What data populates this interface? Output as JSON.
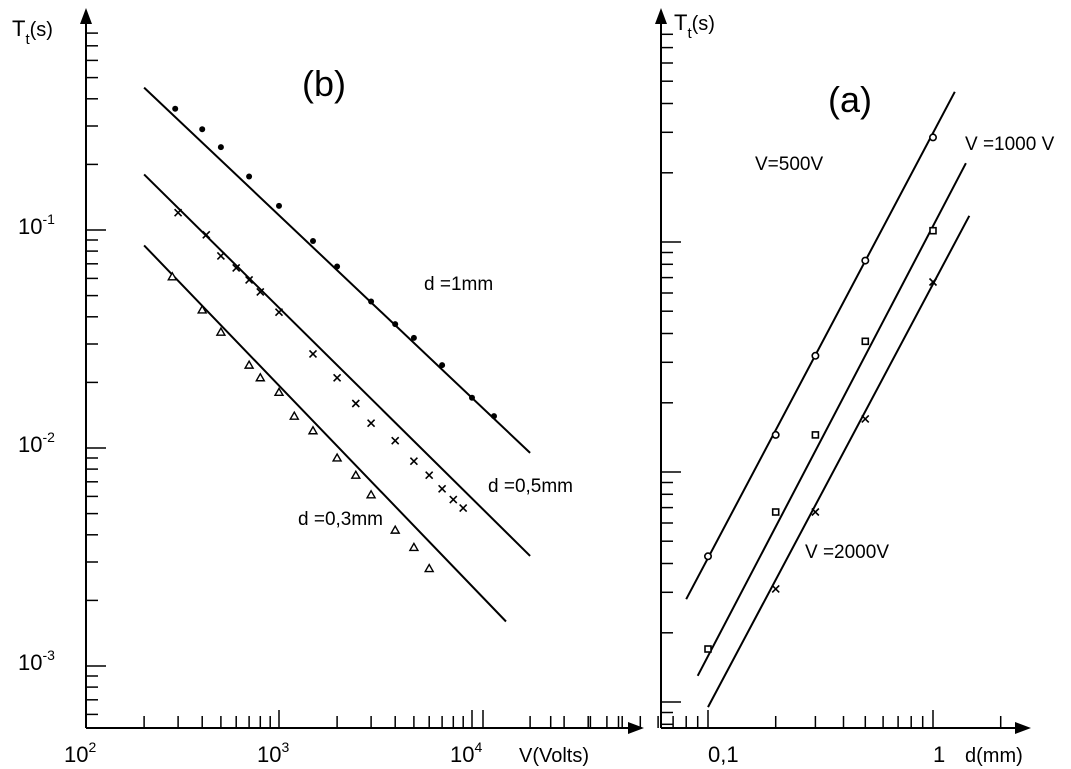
{
  "chart_data": [
    {
      "id": "b",
      "type": "scatter",
      "panel_label": "(b)",
      "xlabel": "V(Volts)",
      "ylabel": "Tt(s)",
      "ylabel_main": "T",
      "ylabel_sub": "t",
      "ylabel_unit": "(s)",
      "x_scale": "log",
      "y_scale": "log",
      "xlim": [
        100,
        30000
      ],
      "ylim": [
        0.0005,
        0.7
      ],
      "x_ticks": [
        {
          "value": 100,
          "base": "10",
          "exp": "2"
        },
        {
          "value": 1000,
          "base": "10",
          "exp": "3"
        },
        {
          "value": 10000,
          "base": "10",
          "exp": "4"
        }
      ],
      "y_ticks": [
        {
          "value": 0.1,
          "base": "10",
          "exp": "-1"
        },
        {
          "value": 0.01,
          "base": "10",
          "exp": "-2"
        },
        {
          "value": 0.001,
          "base": "10",
          "exp": "-3"
        }
      ],
      "grid": false,
      "series": [
        {
          "name": "d =1mm",
          "fit_x": [
            200,
            20000
          ],
          "fit_y": [
            0.45,
            0.0095
          ],
          "x": [
            290,
            400,
            500,
            700,
            1000,
            1500,
            2000,
            3000,
            4000,
            5000,
            7000,
            10000,
            13000
          ],
          "y": [
            0.36,
            0.29,
            0.24,
            0.176,
            0.129,
            0.089,
            0.068,
            0.047,
            0.037,
            0.032,
            0.024,
            0.017,
            0.014
          ]
        },
        {
          "name": "d =0,5mm",
          "fit_x": [
            200,
            20000
          ],
          "fit_y": [
            0.18,
            0.0032
          ],
          "x": [
            300,
            420,
            500,
            600,
            700,
            800,
            1000,
            1500,
            2000,
            2500,
            3000,
            4000,
            5000,
            6000,
            7000,
            8000,
            9000
          ],
          "y": [
            0.12,
            0.095,
            0.076,
            0.067,
            0.059,
            0.052,
            0.042,
            0.027,
            0.021,
            0.016,
            0.013,
            0.0108,
            0.0087,
            0.0075,
            0.0065,
            0.0058,
            0.0053
          ]
        },
        {
          "name": "d =0,3mm",
          "fit_x": [
            200,
            15000
          ],
          "fit_y": [
            0.085,
            0.0016
          ],
          "x": [
            280,
            400,
            500,
            700,
            800,
            1000,
            1200,
            1500,
            2000,
            2500,
            3000,
            4000,
            5000,
            6000
          ],
          "y": [
            0.061,
            0.043,
            0.034,
            0.024,
            0.021,
            0.018,
            0.014,
            0.012,
            0.009,
            0.0075,
            0.0061,
            0.0042,
            0.0035,
            0.0028
          ]
        }
      ]
    },
    {
      "id": "a",
      "type": "scatter",
      "panel_label": "(a)",
      "xlabel": "d(mm)",
      "ylabel": "Tt(s)",
      "ylabel_main": "T",
      "ylabel_sub": "t",
      "ylabel_unit": "(s)",
      "x_scale": "log",
      "y_scale": "log",
      "xlim": [
        0.06,
        2.2
      ],
      "x_ticks": [
        {
          "value": 0.1,
          "label": "0,1"
        },
        {
          "value": 1,
          "label": "1"
        }
      ],
      "grid": false,
      "series": [
        {
          "name": "V=500V",
          "fit_x": [
            0.08,
            1.25
          ],
          "fit_y": [
            0.0028,
            0.45
          ],
          "x": [
            0.1,
            0.2,
            0.3,
            0.5,
            1.0
          ],
          "y": [
            0.0043,
            0.0145,
            0.032,
            0.083,
            0.285
          ]
        },
        {
          "name": "V =1000 V",
          "fit_x": [
            0.09,
            1.4
          ],
          "fit_y": [
            0.0013,
            0.22
          ],
          "x": [
            0.1,
            0.2,
            0.3,
            0.5,
            1.0
          ],
          "y": [
            0.0017,
            0.0067,
            0.0145,
            0.037,
            0.112
          ]
        },
        {
          "name": "V =2000V",
          "fit_x": [
            0.1,
            1.45
          ],
          "fit_y": [
            0.00095,
            0.13
          ],
          "x": [
            0.2,
            0.3,
            0.5,
            1.0
          ],
          "y": [
            0.0031,
            0.0067,
            0.017,
            0.067
          ]
        }
      ]
    }
  ]
}
